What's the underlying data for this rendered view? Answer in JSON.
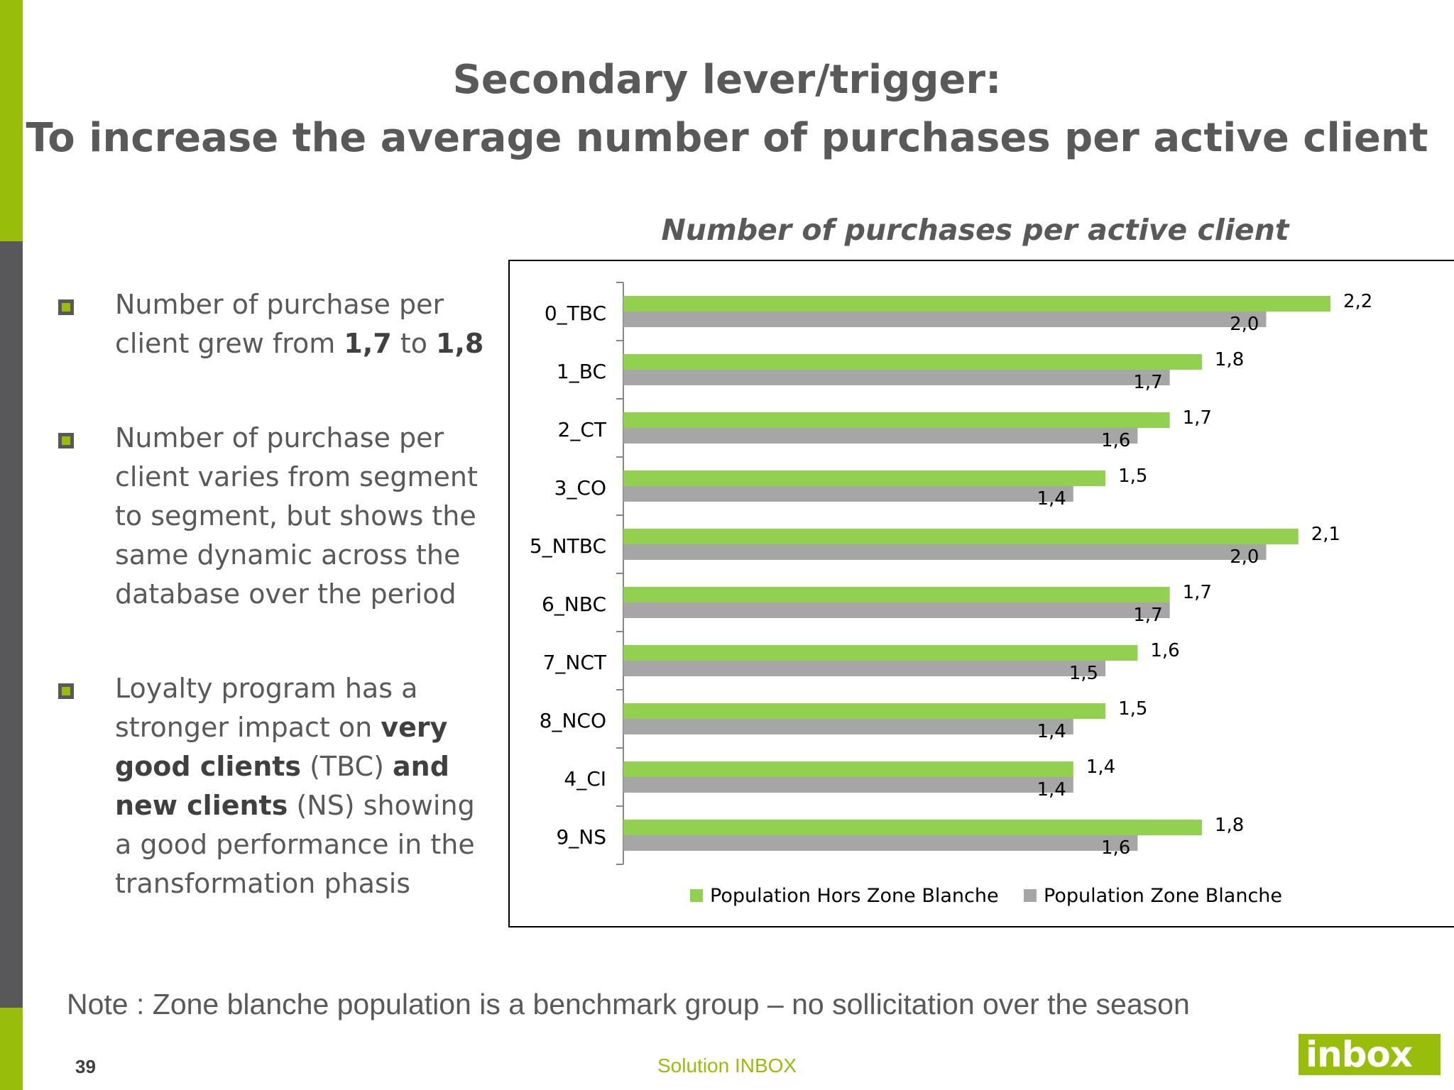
{
  "slide": {
    "title_line1": "Secondary lever/trigger:",
    "title_line2": "To increase the average number of purchases per active client",
    "note": "Note : Zone blanche population is a benchmark group – no sollicitation over the season",
    "page_number": "39",
    "footer_label": "Solution INBOX",
    "logo_text": "inbox",
    "accent_color": "#99bd0b",
    "dark_color": "#58585a"
  },
  "bullets": [
    {
      "parts": [
        {
          "text": "Number of purchase per client grew from ",
          "bold": false
        },
        {
          "text": "1,7",
          "bold": true
        },
        {
          "text": " to ",
          "bold": false
        },
        {
          "text": "1,8",
          "bold": true
        }
      ]
    },
    {
      "parts": [
        {
          "text": "Number of purchase per client varies from segment to segment, but shows the same dynamic across the database over the period",
          "bold": false
        }
      ]
    },
    {
      "parts": [
        {
          "text": "Loyalty program has a stronger impact on ",
          "bold": false
        },
        {
          "text": "very good clients",
          "bold": true
        },
        {
          "text": " (TBC) ",
          "bold": false
        },
        {
          "text": "and new clients",
          "bold": true
        },
        {
          "text": " (NS) showing a good performance in the transformation phasis",
          "bold": false
        }
      ]
    }
  ],
  "chart_data": {
    "type": "bar",
    "orientation": "horizontal",
    "title": "Number of purchases per active client",
    "categories": [
      "0_TBC",
      "1_BC",
      "2_CT",
      "3_CO",
      "5_NTBC",
      "6_NBC",
      "7_NCT",
      "8_NCO",
      "4_CI",
      "9_NS"
    ],
    "series": [
      {
        "name": "Population Hors Zone Blanche",
        "color": "#92d050",
        "values": [
          2.2,
          1.8,
          1.7,
          1.5,
          2.1,
          1.7,
          1.6,
          1.5,
          1.4,
          1.8
        ],
        "labels": [
          "2,2",
          "1,8",
          "1,7",
          "1,5",
          "2,1",
          "1,7",
          "1,6",
          "1,5",
          "1,4",
          "1,8"
        ]
      },
      {
        "name": "Population Zone Blanche",
        "color": "#a6a6a6",
        "values": [
          2.0,
          1.7,
          1.6,
          1.4,
          2.0,
          1.7,
          1.5,
          1.4,
          1.4,
          1.6
        ],
        "labels": [
          "2,0",
          "1,7",
          "1,6",
          "1,4",
          "2,0",
          "1,7",
          "1,5",
          "1,4",
          "1,4",
          "1,6"
        ]
      }
    ],
    "xlim": [
      0,
      2.2
    ],
    "grid": false,
    "legend": "bottom"
  }
}
